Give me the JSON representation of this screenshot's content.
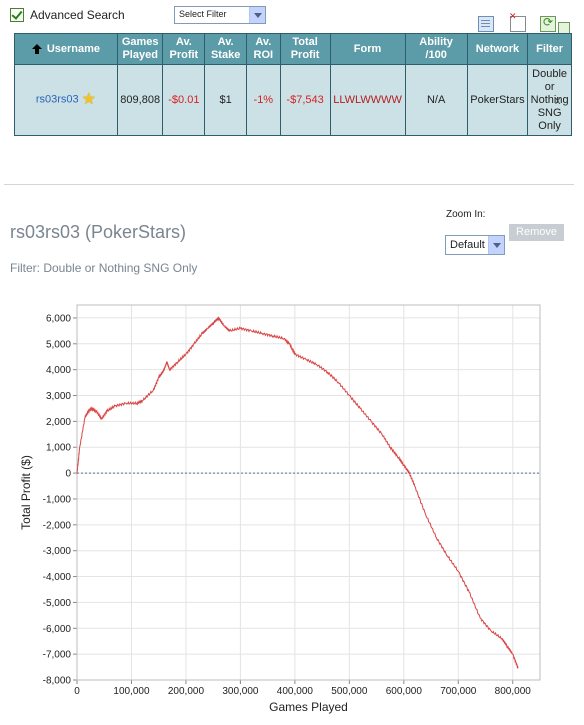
{
  "search": {
    "advanced_label": "Advanced Search",
    "filter_select": "Select Filter"
  },
  "table": {
    "headers": [
      "Username",
      "Games Played",
      "Av. Profit",
      "Av. Stake",
      "Av. ROI",
      "Total Profit",
      "Form",
      "Ability /100",
      "Network",
      "Filter"
    ],
    "row": {
      "username": "rs03rs03",
      "games_played": "809,808",
      "av_profit": "-$0.01",
      "av_stake": "$1",
      "av_roi": "-1%",
      "total_profit": "-$7,543",
      "form": "LLWLWWWW",
      "ability": "N/A",
      "network": "PokerStars",
      "filter": "Double or Nothing SNG Only",
      "remove": "x"
    }
  },
  "player": {
    "title": "rs03rs03 (PokerStars)",
    "filter_line": "Filter: Double or Nothing SNG Only"
  },
  "zoom": {
    "label": "Zoom In:",
    "value": "Default"
  },
  "remove_button": "Remove",
  "colors": {
    "header": "#5c9ba8",
    "cell": "#cbe1e6",
    "line": "#d94545",
    "negative": "#d82020"
  },
  "chart_data": {
    "type": "line",
    "xlabel": "Games Played",
    "ylabel": "Total Profit ($)",
    "xlim": [
      0,
      850000
    ],
    "ylim": [
      -8000,
      6500
    ],
    "x_ticks": [
      0,
      100000,
      200000,
      300000,
      400000,
      500000,
      600000,
      700000,
      800000
    ],
    "x_tick_labels": [
      "0",
      "100,000",
      "200,000",
      "300,000",
      "400,000",
      "500,000",
      "600,000",
      "700,000",
      "800,000"
    ],
    "y_ticks": [
      6000,
      5000,
      4000,
      3000,
      2000,
      1000,
      0,
      -1000,
      -2000,
      -3000,
      -4000,
      -5000,
      -6000,
      -7000,
      -8000
    ],
    "y_tick_labels": [
      "6,000",
      "5,000",
      "4,000",
      "3,000",
      "2,000",
      "1,000",
      "0",
      "-1,000",
      "-2,000",
      "-3,000",
      "-4,000",
      "-5,000",
      "-6,000",
      "-7,000",
      "-8,000"
    ],
    "zero_line": true,
    "grid": true,
    "x": [
      0,
      5000,
      15000,
      25000,
      35000,
      45000,
      55000,
      70000,
      90000,
      110000,
      120000,
      140000,
      150000,
      160000,
      165000,
      170000,
      185000,
      200000,
      215000,
      230000,
      240000,
      250000,
      260000,
      270000,
      280000,
      300000,
      320000,
      340000,
      360000,
      380000,
      390000,
      400000,
      420000,
      440000,
      460000,
      480000,
      500000,
      520000,
      540000,
      560000,
      575000,
      590000,
      600000,
      610000,
      620000,
      640000,
      660000,
      680000,
      700000,
      720000,
      740000,
      760000,
      780000,
      790000,
      800000,
      809808
    ],
    "y": [
      0,
      1000,
      2200,
      2500,
      2400,
      2100,
      2400,
      2600,
      2700,
      2700,
      2800,
      3200,
      3700,
      4000,
      4300,
      4000,
      4300,
      4600,
      5000,
      5400,
      5600,
      5800,
      6000,
      5700,
      5500,
      5600,
      5500,
      5400,
      5300,
      5200,
      5000,
      4600,
      4400,
      4200,
      3900,
      3500,
      3000,
      2500,
      2000,
      1500,
      1000,
      600,
      300,
      0,
      -500,
      -1600,
      -2500,
      -3200,
      -3800,
      -4600,
      -5600,
      -6100,
      -6400,
      -6700,
      -7000,
      -7543
    ]
  }
}
